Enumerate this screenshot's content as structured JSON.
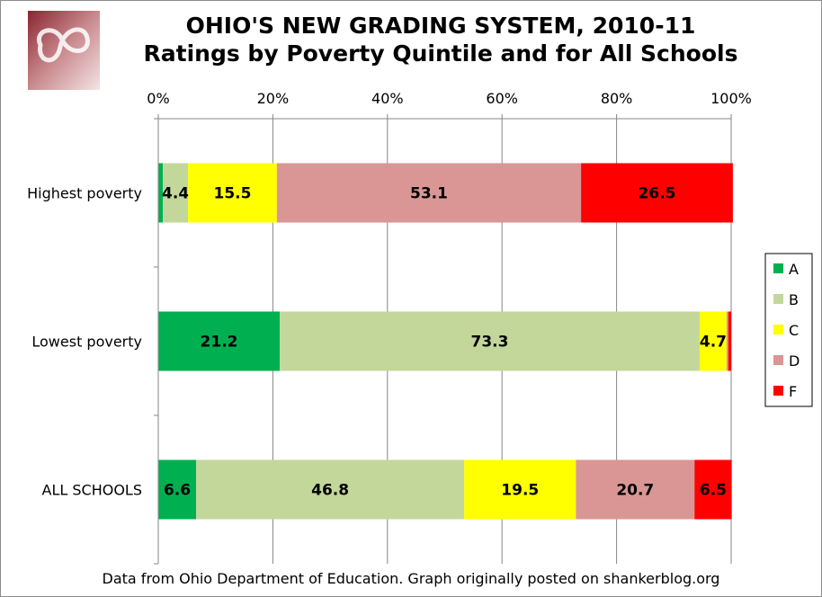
{
  "chart_data": {
    "type": "bar",
    "orientation": "horizontal",
    "stacked": true,
    "title": "OHIO'S NEW GRADING SYSTEM, 2010-11",
    "subtitle": "Ratings by Poverty Quintile and for All Schools",
    "xlabel": "",
    "ylabel": "",
    "xlim": [
      0,
      100
    ],
    "x_ticks": [
      "0%",
      "20%",
      "40%",
      "60%",
      "80%",
      "100%"
    ],
    "x_tick_values": [
      0,
      20,
      40,
      60,
      80,
      100
    ],
    "x_axis_position": "top",
    "grid": true,
    "legend_position": "right",
    "categories": [
      "Highest poverty",
      "Lowest poverty",
      "ALL SCHOOLS"
    ],
    "series": [
      {
        "name": "A",
        "color": "#00b050",
        "values": [
          0.8,
          21.2,
          6.6
        ],
        "labels": [
          "",
          "21.2",
          "6.6"
        ]
      },
      {
        "name": "B",
        "color": "#c4d79b",
        "values": [
          4.4,
          73.3,
          46.8
        ],
        "labels": [
          "4.4",
          "73.3",
          "46.8"
        ]
      },
      {
        "name": "C",
        "color": "#ffff00",
        "values": [
          15.5,
          4.7,
          19.5
        ],
        "labels": [
          "15.5",
          "4.7",
          "19.5"
        ]
      },
      {
        "name": "D",
        "color": "#da9694",
        "values": [
          53.1,
          0.3,
          20.7
        ],
        "labels": [
          "53.1",
          "",
          "20.7"
        ]
      },
      {
        "name": "F",
        "color": "#ff0000",
        "values": [
          26.5,
          0.5,
          6.5
        ],
        "labels": [
          "26.5",
          "",
          "6.5"
        ]
      }
    ]
  },
  "footnote": "Data from Ohio Department of Education. Graph originally posted on shankerblog.org"
}
